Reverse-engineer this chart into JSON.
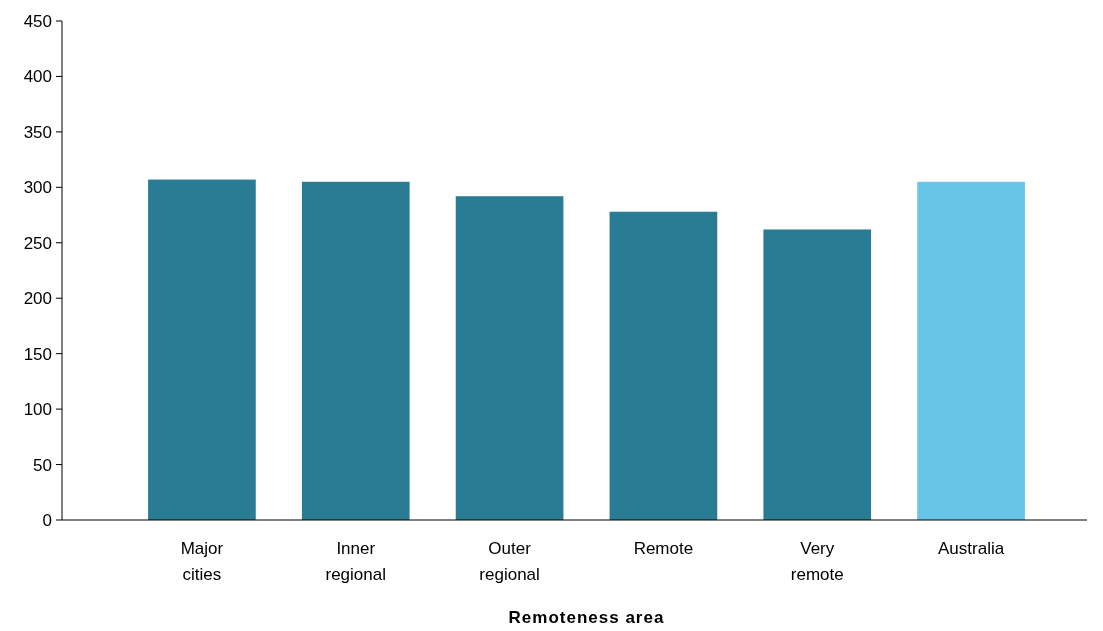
{
  "chart_data": {
    "type": "bar",
    "xlabel": "Remoteness area",
    "categories": [
      "Major cities",
      "Inner regional",
      "Outer regional",
      "Remote",
      "Very remote",
      "Australia"
    ],
    "values": [
      307,
      305,
      292,
      278,
      262,
      305
    ],
    "colors": [
      "#2a7b94",
      "#2a7b94",
      "#2a7b94",
      "#2a7b94",
      "#2a7b94",
      "#67c6e7"
    ],
    "ylim": [
      0,
      450
    ],
    "yticks": [
      0,
      50,
      100,
      150,
      200,
      250,
      300,
      350,
      400,
      450
    ]
  }
}
